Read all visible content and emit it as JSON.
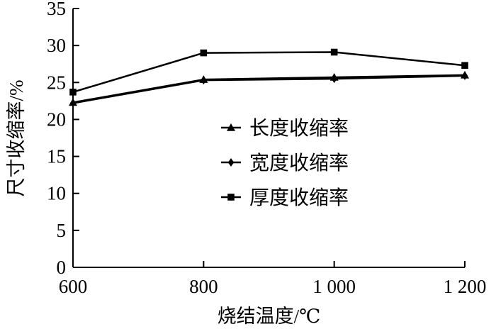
{
  "chart_data": {
    "type": "line",
    "xlabel": "烧结温度/℃",
    "ylabel": "尺寸收缩率/%",
    "x": [
      600,
      800,
      1000,
      1200
    ],
    "x_tick_labels": [
      "600",
      "800",
      "1 000",
      "1 200"
    ],
    "xlim": [
      600,
      1200
    ],
    "ylim": [
      0,
      35
    ],
    "y_ticks": [
      0,
      5,
      10,
      15,
      20,
      25,
      30,
      35
    ],
    "grid": false,
    "legend_position": "center-right",
    "series": [
      {
        "name": "长度收缩率",
        "marker": "triangle",
        "values": [
          22.3,
          25.4,
          25.7,
          26.0
        ]
      },
      {
        "name": "宽度收缩率",
        "marker": "diamond",
        "values": [
          22.2,
          25.3,
          25.5,
          25.9
        ]
      },
      {
        "name": "厚度收缩率",
        "marker": "square",
        "values": [
          23.7,
          29.0,
          29.1,
          27.3
        ]
      }
    ],
    "color": "#000000"
  }
}
